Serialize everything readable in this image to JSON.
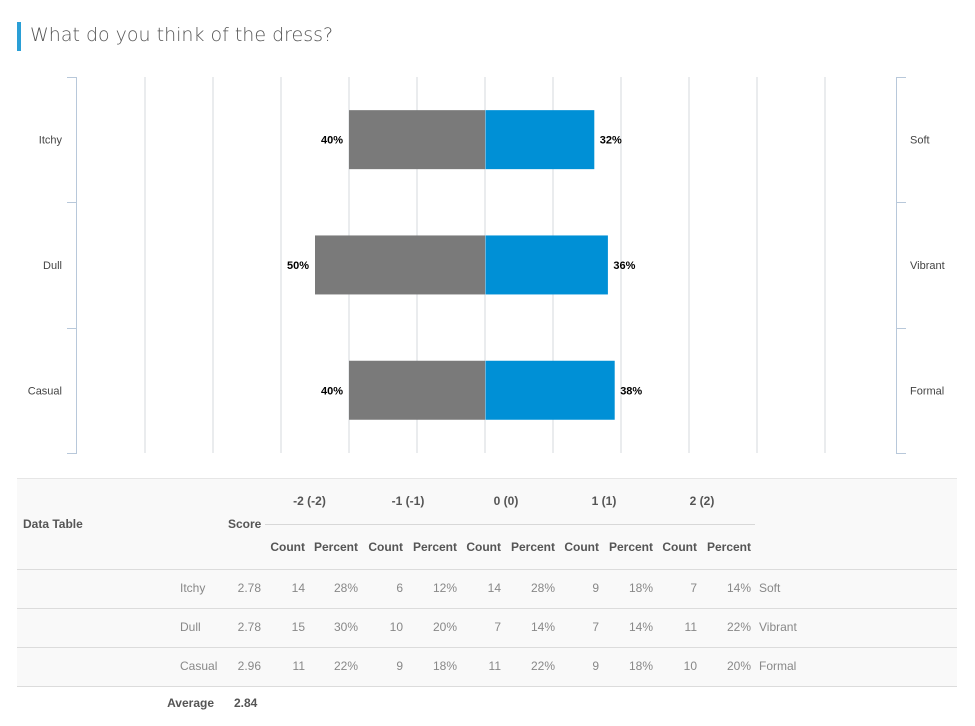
{
  "header": {
    "title": "What do you think of the dress?"
  },
  "chart_data": {
    "type": "bar",
    "orientation": "horizontal-diverging",
    "categories_left": [
      "Itchy",
      "Dull",
      "Casual"
    ],
    "categories_right": [
      "Soft",
      "Vibrant",
      "Formal"
    ],
    "series": [
      {
        "side": "negative",
        "color": "#7a7a7a",
        "values": [
          40,
          50,
          40
        ],
        "labels": [
          "40%",
          "50%",
          "40%"
        ]
      },
      {
        "side": "positive",
        "color": "#0090d6",
        "values": [
          32,
          36,
          38
        ],
        "labels": [
          "32%",
          "36%",
          "38%"
        ]
      }
    ],
    "xlim": [
      -120,
      120
    ],
    "grid": true
  },
  "table": {
    "title": "Data Table",
    "score_label": "Score",
    "groups": [
      "-2 (-2)",
      "-1 (-1)",
      "0 (0)",
      "1 (1)",
      "2 (2)"
    ],
    "count_label": "Count",
    "percent_label": "Percent",
    "rows": [
      {
        "left": "Itchy",
        "score": "2.78",
        "cells": [
          "14",
          "28%",
          "6",
          "12%",
          "14",
          "28%",
          "9",
          "18%",
          "7",
          "14%"
        ],
        "right": "Soft"
      },
      {
        "left": "Dull",
        "score": "2.78",
        "cells": [
          "15",
          "30%",
          "10",
          "20%",
          "7",
          "14%",
          "7",
          "14%",
          "11",
          "22%"
        ],
        "right": "Vibrant"
      },
      {
        "left": "Casual",
        "score": "2.96",
        "cells": [
          "11",
          "22%",
          "9",
          "18%",
          "11",
          "22%",
          "9",
          "18%",
          "10",
          "20%"
        ],
        "right": "Formal"
      }
    ],
    "average_label": "Average",
    "average_value": "2.84"
  }
}
